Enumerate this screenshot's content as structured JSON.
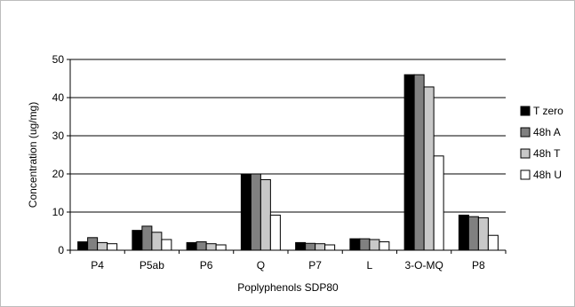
{
  "chart_data": {
    "type": "bar",
    "title": "",
    "xlabel": "Poplyphenols SDP80",
    "ylabel": "Concentration (ug/mg)",
    "ylim": [
      0,
      50
    ],
    "yticks": [
      0,
      10,
      20,
      30,
      40,
      50
    ],
    "grid": "horizontal",
    "legend_position": "right",
    "categories": [
      "P4",
      "P5ab",
      "P6",
      "Q",
      "P7",
      "L",
      "3-O-MQ",
      "P8"
    ],
    "series": [
      {
        "name": "T zero",
        "color": "#000000",
        "values": [
          2.2,
          5.2,
          2.0,
          20.0,
          2.0,
          3.0,
          46.0,
          9.2
        ]
      },
      {
        "name": "48h A",
        "color": "#808080",
        "values": [
          3.3,
          6.3,
          2.2,
          20.0,
          1.8,
          3.0,
          46.0,
          8.8
        ]
      },
      {
        "name": "48h T",
        "color": "#c8c8c8",
        "values": [
          2.0,
          4.7,
          1.7,
          18.5,
          1.7,
          2.8,
          42.8,
          8.5
        ]
      },
      {
        "name": "48h U",
        "color": "#ffffff",
        "values": [
          1.7,
          2.8,
          1.4,
          9.2,
          1.4,
          2.2,
          24.7,
          3.9
        ]
      }
    ]
  }
}
